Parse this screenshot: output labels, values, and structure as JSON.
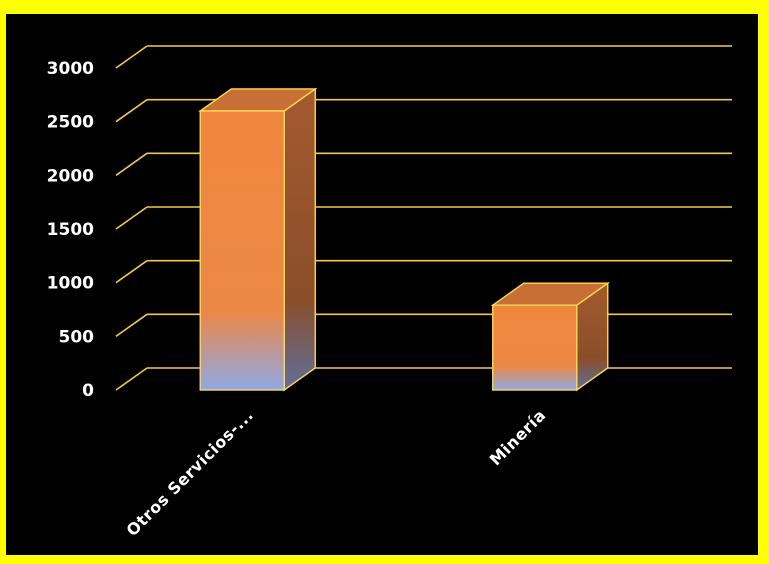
{
  "chart_data": {
    "type": "bar",
    "categories": [
      "Otros Servicios-...",
      "Minería"
    ],
    "values": [
      2600,
      790
    ],
    "title": "",
    "xlabel": "",
    "ylabel": "",
    "ylim": [
      0,
      3000
    ],
    "yticks": [
      0,
      500,
      1000,
      1500,
      2000,
      2500,
      3000
    ],
    "grid": true,
    "legend": "none"
  },
  "colors": {
    "background": "#000000",
    "border": "#ffff00",
    "gridline": "#f2c94c",
    "bar_front_top": "#f0873e",
    "bar_front_bottom": "#8fa8e6",
    "bar_side": "#8a4e2a",
    "bar_top": "#c86f35",
    "bar_outline": "#ffd84d"
  }
}
